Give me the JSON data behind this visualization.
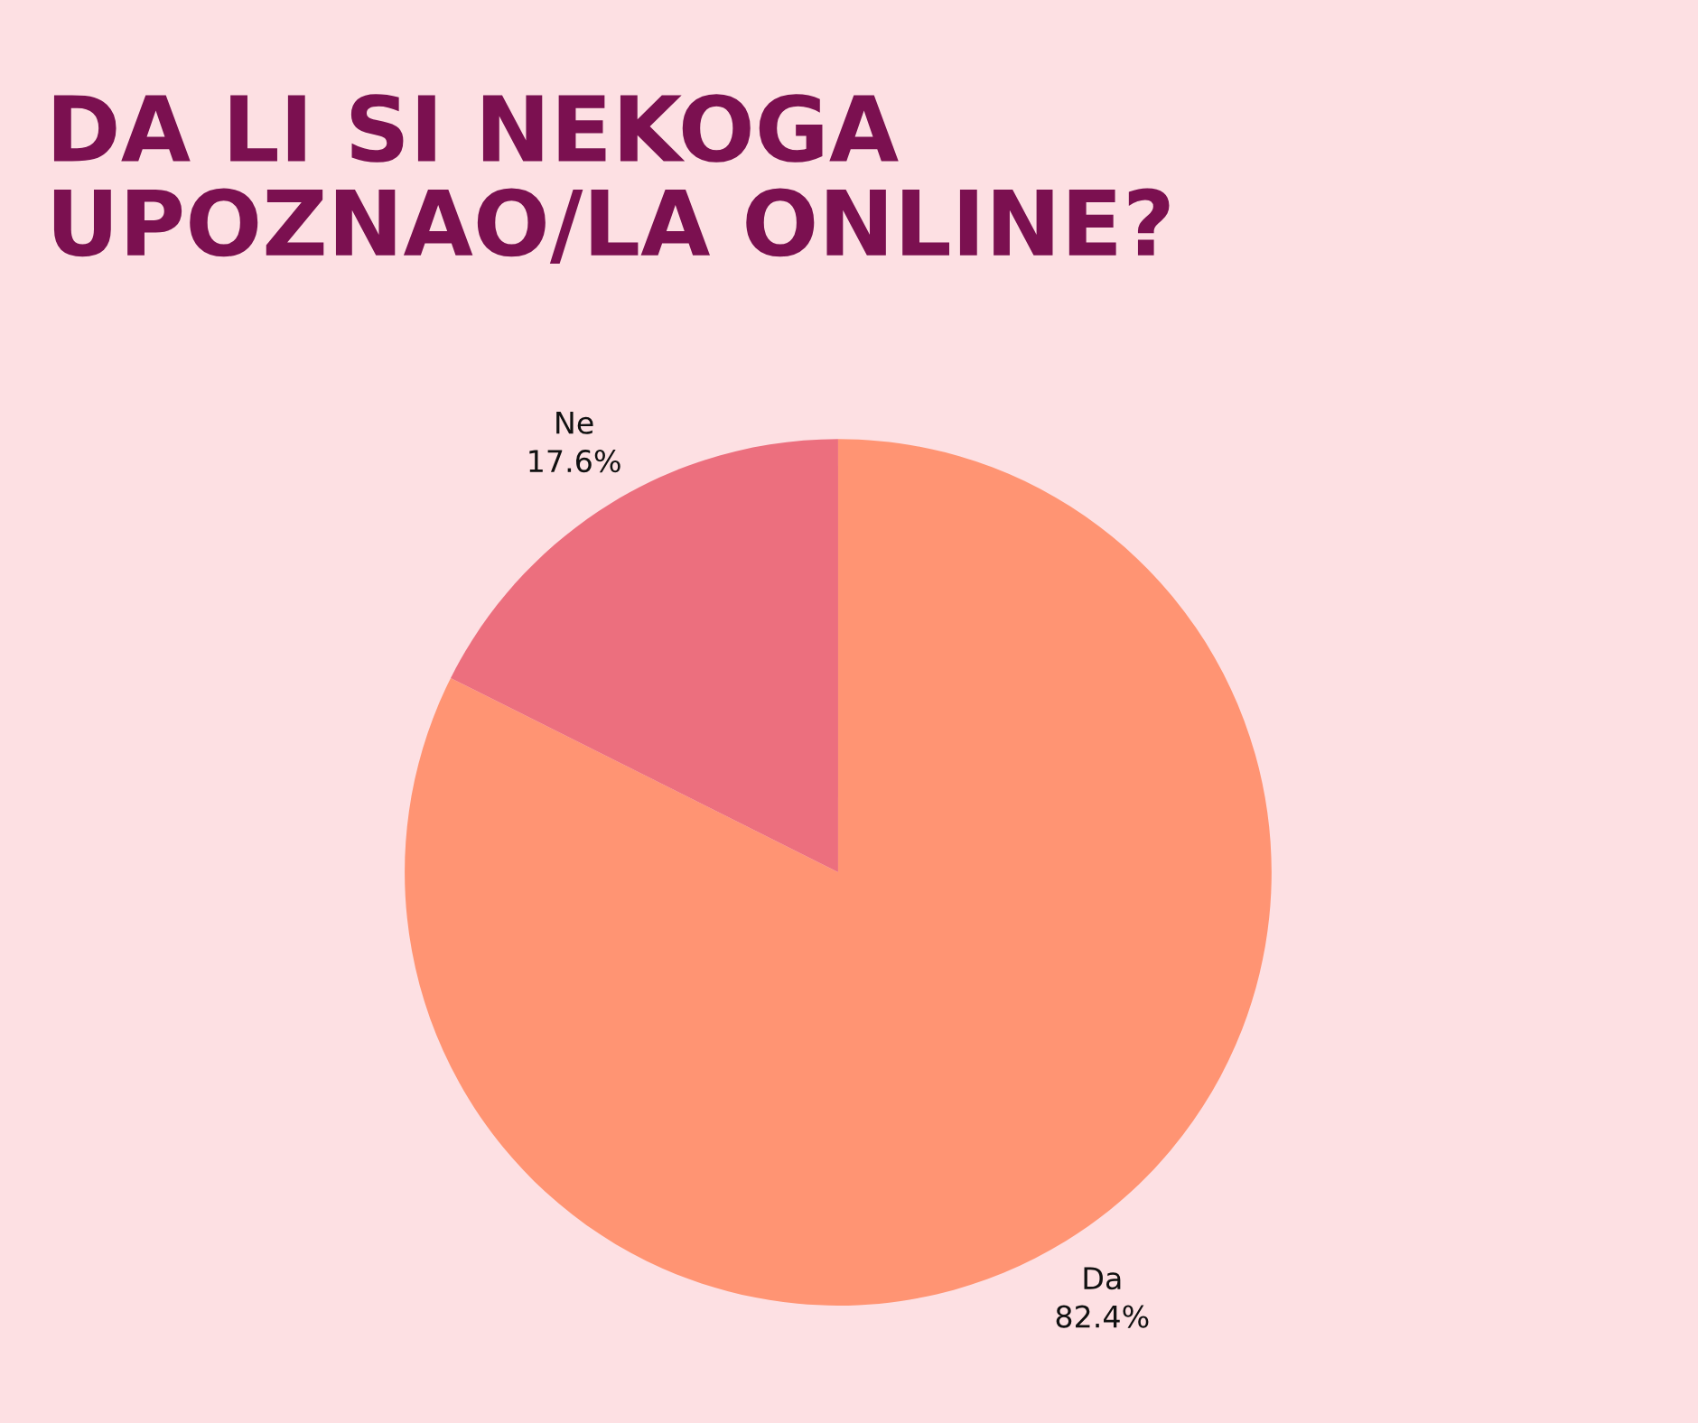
{
  "chart_data": {
    "type": "pie",
    "title": "DA LI SI NEKOGA\nUPOZNAO/LA ONLINE?",
    "categories": [
      "Da",
      "Ne"
    ],
    "values": [
      82.4,
      17.6
    ],
    "colors": [
      "#ff9473",
      "#ec6f7e"
    ],
    "value_labels": [
      "82.4%",
      "17.6%"
    ]
  }
}
